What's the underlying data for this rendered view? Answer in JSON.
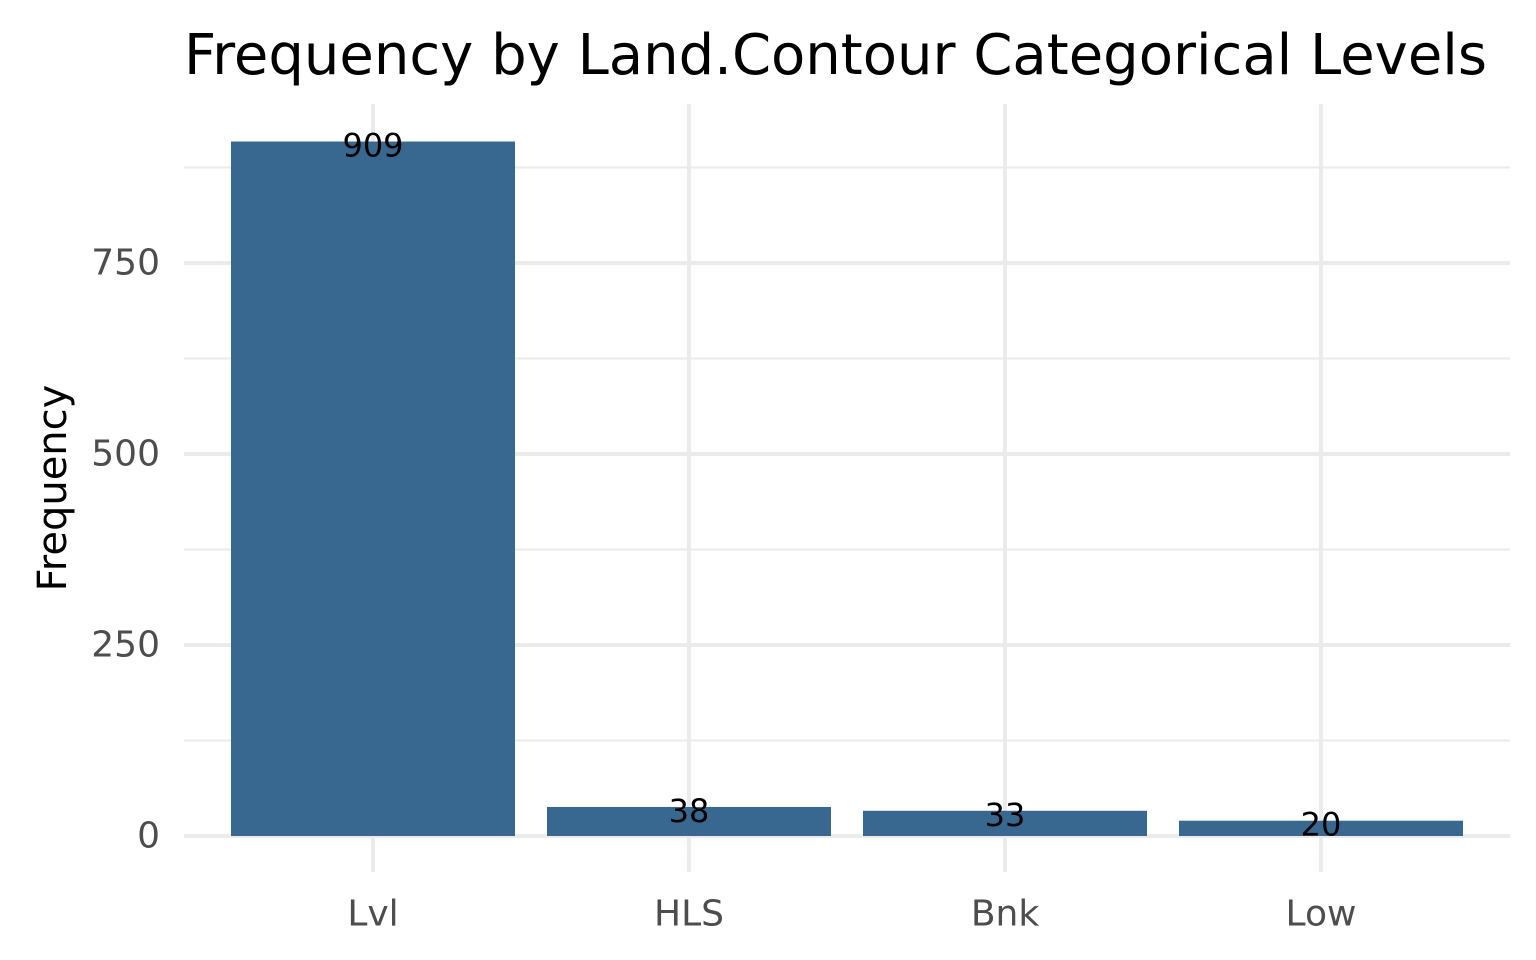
{
  "chart_data": {
    "type": "bar",
    "title": "Frequency by Land.Contour Categorical Levels",
    "xlabel": "",
    "ylabel": "Frequency",
    "categories": [
      "Lvl",
      "HLS",
      "Bnk",
      "Low"
    ],
    "values": [
      909,
      38,
      33,
      20
    ],
    "data_labels": [
      "909",
      "38",
      "33",
      "20"
    ],
    "ylim": [
      0,
      954
    ],
    "y_ticks": [
      0,
      250,
      500,
      750
    ],
    "y_tick_labels": [
      "0",
      "250",
      "500",
      "750"
    ],
    "y_minor_ticks": [
      125,
      375,
      625,
      875
    ],
    "grid": true,
    "legend": "none",
    "bar_color": "#386890"
  }
}
